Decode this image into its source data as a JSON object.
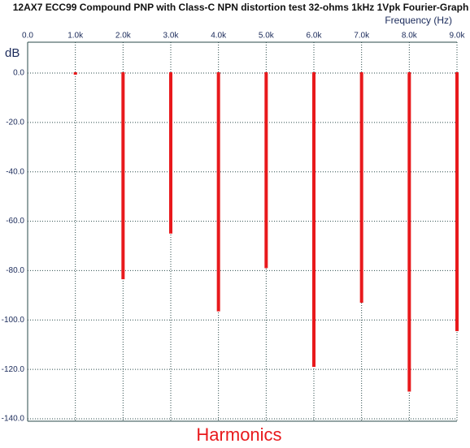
{
  "chart_data": {
    "type": "bar",
    "title": "12AX7 ECC99 Compound PNP with Class-C NPN distortion test 32-ohms 1kHz 1Vpk Fourier-Graph",
    "x_label": "Frequency  (Hz)",
    "y_label": "dB",
    "annotation": "Harmonics",
    "x": [
      1000,
      2000,
      3000,
      4000,
      5000,
      6000,
      7000,
      8000,
      9000
    ],
    "values": [
      0,
      -83.5,
      -65,
      -96.5,
      -79,
      -119,
      -93,
      -129,
      -104.5
    ],
    "color": "#e8191c",
    "xlim": [
      0,
      9000
    ],
    "ylim": [
      -141,
      12.5
    ],
    "xticks": [
      {
        "value": 0,
        "label": "0.0"
      },
      {
        "value": 1000,
        "label": "1.0k"
      },
      {
        "value": 2000,
        "label": "2.0k"
      },
      {
        "value": 3000,
        "label": "3.0k"
      },
      {
        "value": 4000,
        "label": "4.0k"
      },
      {
        "value": 5000,
        "label": "5.0k"
      },
      {
        "value": 6000,
        "label": "6.0k"
      },
      {
        "value": 7000,
        "label": "7.0k"
      },
      {
        "value": 8000,
        "label": "8.0k"
      },
      {
        "value": 9000,
        "label": "9.0k"
      }
    ],
    "yticks": [
      {
        "value": 0,
        "label": "0.0"
      },
      {
        "value": -20,
        "label": "-20.0"
      },
      {
        "value": -40,
        "label": "-40.0"
      },
      {
        "value": -60,
        "label": "-60.0"
      },
      {
        "value": -80,
        "label": "-80.0"
      },
      {
        "value": -100,
        "label": "-100.0"
      },
      {
        "value": -120,
        "label": "-120.0"
      },
      {
        "value": -140,
        "label": "-140.0"
      }
    ],
    "grid": true
  }
}
